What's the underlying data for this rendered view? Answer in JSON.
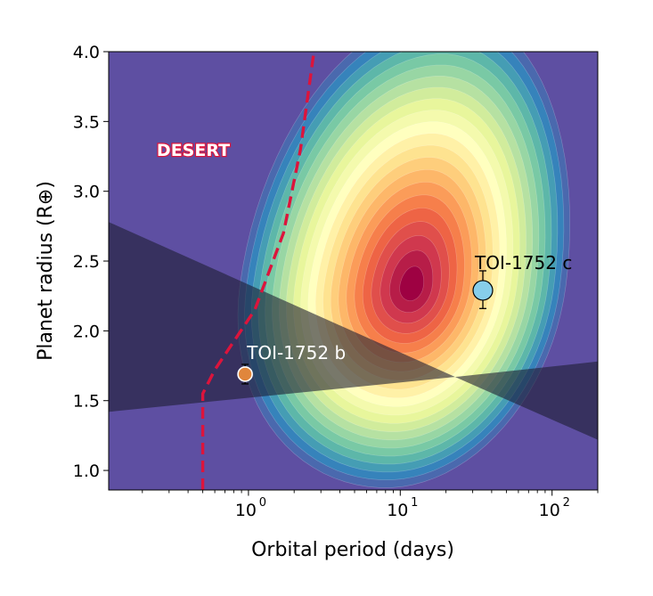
{
  "chart_data": {
    "type": "contour",
    "title": "",
    "xlabel": "Orbital period (days)",
    "ylabel": "Planet radius (R⊕)",
    "x_scale": "log",
    "xlim": [
      0.12,
      200
    ],
    "ylim": [
      0.86,
      4.0
    ],
    "x_ticks": [
      {
        "value": 1,
        "base": "10",
        "exp": "0"
      },
      {
        "value": 10,
        "base": "10",
        "exp": "1"
      },
      {
        "value": 100,
        "base": "10",
        "exp": "2"
      }
    ],
    "y_ticks": [
      {
        "value": 1.0,
        "label": "1.0"
      },
      {
        "value": 1.5,
        "label": "1.5"
      },
      {
        "value": 2.0,
        "label": "2.0"
      },
      {
        "value": 2.5,
        "label": "2.5"
      },
      {
        "value": 3.0,
        "label": "3.0"
      },
      {
        "value": 3.5,
        "label": "3.5"
      },
      {
        "value": 4.0,
        "label": "4.0"
      }
    ],
    "density_peak": {
      "period": 12,
      "radius": 2.32
    },
    "colormap": [
      "#5e4fa2",
      "#3288bd",
      "#66c2a5",
      "#abdda4",
      "#e6f598",
      "#ffffbf",
      "#fee08b",
      "#fdae61",
      "#f46d43",
      "#d53e4f",
      "#9e0142"
    ],
    "desert_boundary": {
      "label": "DESERT",
      "color": "#dc143c",
      "points": [
        [
          0.5,
          0.86
        ],
        [
          0.5,
          1.55
        ],
        [
          0.6,
          1.72
        ],
        [
          1.1,
          2.15
        ],
        [
          1.7,
          2.7
        ],
        [
          2.2,
          3.3
        ],
        [
          2.7,
          4.0
        ]
      ]
    },
    "valley_band": {
      "color": "#1e1e32",
      "pivot": [
        23,
        1.67
      ],
      "edges": [
        [
          [
            0.12,
            2.78
          ],
          [
            200,
            1.22
          ]
        ],
        [
          [
            0.12,
            1.42
          ],
          [
            200,
            1.78
          ]
        ]
      ]
    },
    "planets": [
      {
        "name": "TOI-1752 b",
        "period": 0.95,
        "radius": 1.69,
        "err_low": 0.07,
        "err_high": 0.07,
        "color": "#e0863c"
      },
      {
        "name": "TOI-1752 c",
        "period": 35,
        "radius": 2.29,
        "err_low": 0.13,
        "err_high": 0.14,
        "color": "#87ceeb"
      }
    ]
  }
}
